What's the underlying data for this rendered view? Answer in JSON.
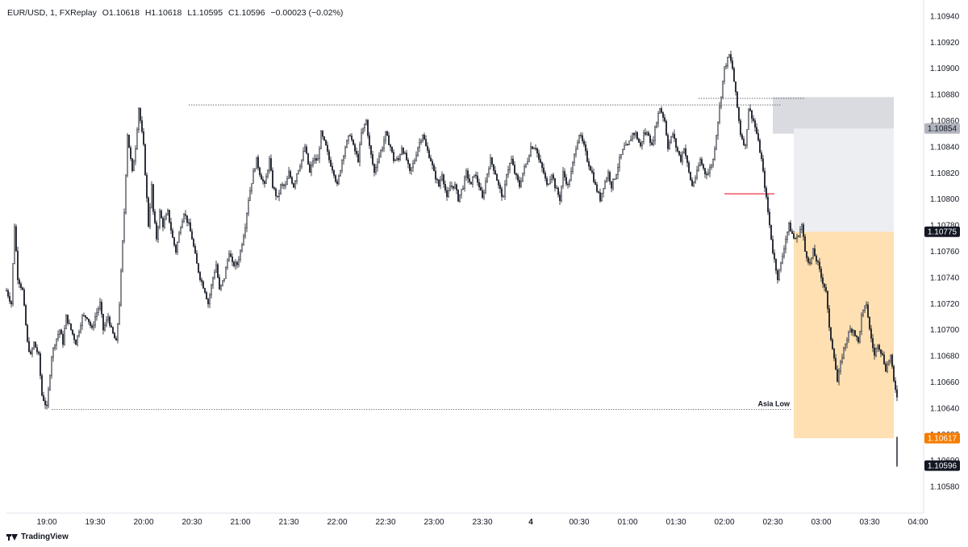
{
  "header": {
    "symbol": "EUR/USD, 1, FXReplay",
    "open": "O1.10618",
    "high": "H1.10618",
    "low": "L1.10595",
    "close": "C1.10596",
    "change": "−0.00023 (−0.02%)"
  },
  "footer": {
    "brand": "TradingView"
  },
  "colors": {
    "candle": "#131722",
    "grid": "#e0e3eb",
    "profit_zone": "#ffe0b2",
    "risk_zone": "#eceef2",
    "supply_zone": "#d9dbe0",
    "red_line": "#f23645",
    "badge_dark": "#131722",
    "badge_orange": "#f57c00",
    "badge_grey": "#b2b5be"
  },
  "chart_data": {
    "type": "candlestick",
    "symbol": "EUR/USD",
    "timeframe": "1",
    "ylim": [
      1.1056,
      1.1096
    ],
    "y_ticks": [
      "1.10940",
      "1.10920",
      "1.10900",
      "1.10880",
      "1.10860",
      "1.10840",
      "1.10820",
      "1.10800",
      "1.10780",
      "1.10760",
      "1.10740",
      "1.10720",
      "1.10700",
      "1.10680",
      "1.10660",
      "1.10640",
      "1.10620",
      "1.10600",
      "1.10580"
    ],
    "y_tick_values": [
      1.1094,
      1.1092,
      1.109,
      1.1088,
      1.1086,
      1.1084,
      1.1082,
      1.108,
      1.1078,
      1.1076,
      1.1074,
      1.1072,
      1.107,
      1.1068,
      1.1066,
      1.1064,
      1.1062,
      1.106,
      1.1058
    ],
    "x_ticks": [
      "19:00",
      "19:30",
      "20:00",
      "20:30",
      "21:00",
      "21:30",
      "22:00",
      "22:30",
      "23:00",
      "23:30",
      "4",
      "00:30",
      "01:00",
      "01:30",
      "02:00",
      "02:30",
      "03:00",
      "03:30",
      "04:00"
    ],
    "x_tick_minutes": [
      0,
      30,
      60,
      90,
      120,
      150,
      180,
      210,
      240,
      270,
      300,
      330,
      360,
      390,
      420,
      450,
      480,
      510,
      540
    ],
    "xlim_minutes": [
      -25,
      546
    ],
    "path_minutes": [
      -25,
      -22,
      -20,
      -18,
      -15,
      -12,
      -10,
      -8,
      -5,
      -3,
      0,
      3,
      5,
      8,
      10,
      12,
      15,
      18,
      20,
      22,
      25,
      28,
      30,
      33,
      35,
      38,
      40,
      43,
      45,
      48,
      50,
      53,
      55,
      57,
      58,
      60,
      63,
      65,
      66,
      68,
      70,
      72,
      75,
      78,
      80,
      83,
      85,
      88,
      90,
      93,
      95,
      98,
      100,
      103,
      105,
      107,
      110,
      113,
      115,
      118,
      120,
      123,
      125,
      128,
      130,
      132,
      135,
      138,
      140,
      143,
      145,
      148,
      150,
      153,
      155,
      158,
      160,
      163,
      165,
      168,
      170,
      173,
      175,
      178,
      180,
      183,
      185,
      188,
      190,
      193,
      195,
      198,
      200,
      203,
      205,
      208,
      210,
      213,
      215,
      218,
      220,
      223,
      225,
      228,
      230,
      233,
      235,
      238,
      240,
      243,
      245,
      248,
      250,
      253,
      255,
      258,
      260,
      263,
      265,
      268,
      270,
      273,
      275,
      278,
      280,
      283,
      285,
      288,
      290,
      293,
      295,
      298,
      300,
      303,
      305,
      308,
      310,
      313,
      315,
      318,
      320,
      323,
      325,
      328,
      330,
      333,
      335,
      338,
      340,
      343,
      345,
      348,
      350,
      353,
      355,
      358,
      360,
      363,
      365,
      368,
      370,
      373,
      375,
      378,
      380,
      383,
      385,
      388,
      390,
      393,
      395,
      398,
      400,
      403,
      405,
      408,
      410,
      413,
      415,
      418,
      420,
      423,
      425,
      428,
      430,
      433,
      435,
      438,
      440,
      443,
      445,
      448,
      450,
      453,
      455,
      458,
      460,
      463,
      465,
      468,
      470,
      473,
      475,
      478,
      480,
      483,
      485,
      488,
      490,
      493,
      495,
      498,
      500,
      503,
      505,
      508,
      510,
      513,
      515,
      518,
      520,
      523,
      525,
      527
    ],
    "path_values": [
      1.1073,
      1.1072,
      1.1078,
      1.1074,
      1.1073,
      1.1069,
      1.1068,
      1.1069,
      1.1068,
      1.1065,
      1.1064,
      1.1068,
      1.1069,
      1.107,
      1.1069,
      1.1071,
      1.107,
      1.1069,
      1.107,
      1.1071,
      1.1071,
      1.107,
      1.1071,
      1.1072,
      1.107,
      1.1071,
      1.107,
      1.1069,
      1.1072,
      1.1079,
      1.1085,
      1.1082,
      1.1084,
      1.1087,
      1.1086,
      1.1084,
      1.1078,
      1.1081,
      1.1079,
      1.1077,
      1.1079,
      1.1078,
      1.1079,
      1.1077,
      1.1076,
      1.1078,
      1.1079,
      1.1078,
      1.1077,
      1.1075,
      1.1074,
      1.1073,
      1.1072,
      1.1074,
      1.1075,
      1.1073,
      1.1074,
      1.1076,
      1.1075,
      1.1075,
      1.1076,
      1.1078,
      1.108,
      1.1082,
      1.1083,
      1.1082,
      1.1081,
      1.1083,
      1.1081,
      1.108,
      1.1081,
      1.1081,
      1.1082,
      1.1081,
      1.1082,
      1.1083,
      1.1084,
      1.1082,
      1.1083,
      1.1083,
      1.1085,
      1.1084,
      1.1083,
      1.1082,
      1.1081,
      1.1083,
      1.1084,
      1.1085,
      1.1084,
      1.1083,
      1.1085,
      1.1086,
      1.1084,
      1.1082,
      1.1083,
      1.1084,
      1.1085,
      1.1084,
      1.1083,
      1.1083,
      1.1084,
      1.1083,
      1.1082,
      1.1083,
      1.1084,
      1.1085,
      1.1084,
      1.1083,
      1.1082,
      1.1081,
      1.1082,
      1.108,
      1.1081,
      1.1081,
      1.108,
      1.1081,
      1.1082,
      1.1081,
      1.1082,
      1.1081,
      1.108,
      1.1082,
      1.1083,
      1.1082,
      1.1081,
      1.108,
      1.1082,
      1.1083,
      1.1082,
      1.1081,
      1.1082,
      1.1083,
      1.1084,
      1.1084,
      1.1083,
      1.1082,
      1.1081,
      1.1082,
      1.1081,
      1.108,
      1.1082,
      1.1081,
      1.1082,
      1.1084,
      1.1085,
      1.1084,
      1.1083,
      1.1082,
      1.1081,
      1.108,
      1.1081,
      1.1082,
      1.1081,
      1.1082,
      1.1083,
      1.1084,
      1.1084,
      1.1085,
      1.1085,
      1.1084,
      1.1085,
      1.1085,
      1.1084,
      1.1086,
      1.1087,
      1.1086,
      1.1084,
      1.1085,
      1.1084,
      1.1083,
      1.1084,
      1.1082,
      1.1081,
      1.1082,
      1.1083,
      1.1082,
      1.1082,
      1.1083,
      1.1085,
      1.1088,
      1.109,
      1.1091,
      1.109,
      1.1087,
      1.1085,
      1.1084,
      1.1087,
      1.1086,
      1.1085,
      1.1083,
      1.1081,
      1.1078,
      1.1076,
      1.1074,
      1.1075,
      1.1077,
      1.1078,
      1.1077,
      1.1077,
      1.1078,
      1.1076,
      1.1075,
      1.1076,
      1.1075,
      1.1074,
      1.1073,
      1.107,
      1.1068,
      1.1066,
      1.1068,
      1.1069,
      1.107,
      1.107,
      1.1069,
      1.1071,
      1.1072,
      1.107,
      1.1068,
      1.1069,
      1.1068,
      1.1067,
      1.1068,
      1.1066,
      1.1065,
      1.1066,
      1.1064,
      1.1063,
      1.1064,
      1.1063,
      1.1062,
      1.1061,
      1.106
    ],
    "levels": [
      {
        "kind": "dotted",
        "value": 1.10872,
        "from_minute": 88,
        "to_minute": 455
      },
      {
        "kind": "dotted",
        "value": 1.10877,
        "from_minute": 404,
        "to_minute": 470
      },
      {
        "kind": "dotted",
        "value": 1.10639,
        "from_minute": 3,
        "to_minute": 462,
        "label": "Asia Low"
      },
      {
        "kind": "solid",
        "value": 1.10804,
        "from_minute": 420,
        "to_minute": 451
      }
    ],
    "zones": [
      {
        "kind": "supply",
        "from_minute": 450,
        "to_minute": 525,
        "high": 1.10878,
        "low": 1.1085
      },
      {
        "kind": "risk",
        "from_minute": 463,
        "to_minute": 525,
        "high": 1.10854,
        "low": 1.10775
      },
      {
        "kind": "reward",
        "from_minute": 463,
        "to_minute": 525,
        "high": 1.10775,
        "low": 1.10617
      }
    ],
    "price_badges": [
      {
        "kind": "grey",
        "value": 1.10854,
        "text": "1.10854"
      },
      {
        "kind": "dark",
        "value": 1.10775,
        "text": "1.10775"
      },
      {
        "kind": "orange",
        "value": 1.10617,
        "text": "1.10617"
      },
      {
        "kind": "dark",
        "value": 1.10596,
        "text": "1.10596"
      }
    ]
  }
}
